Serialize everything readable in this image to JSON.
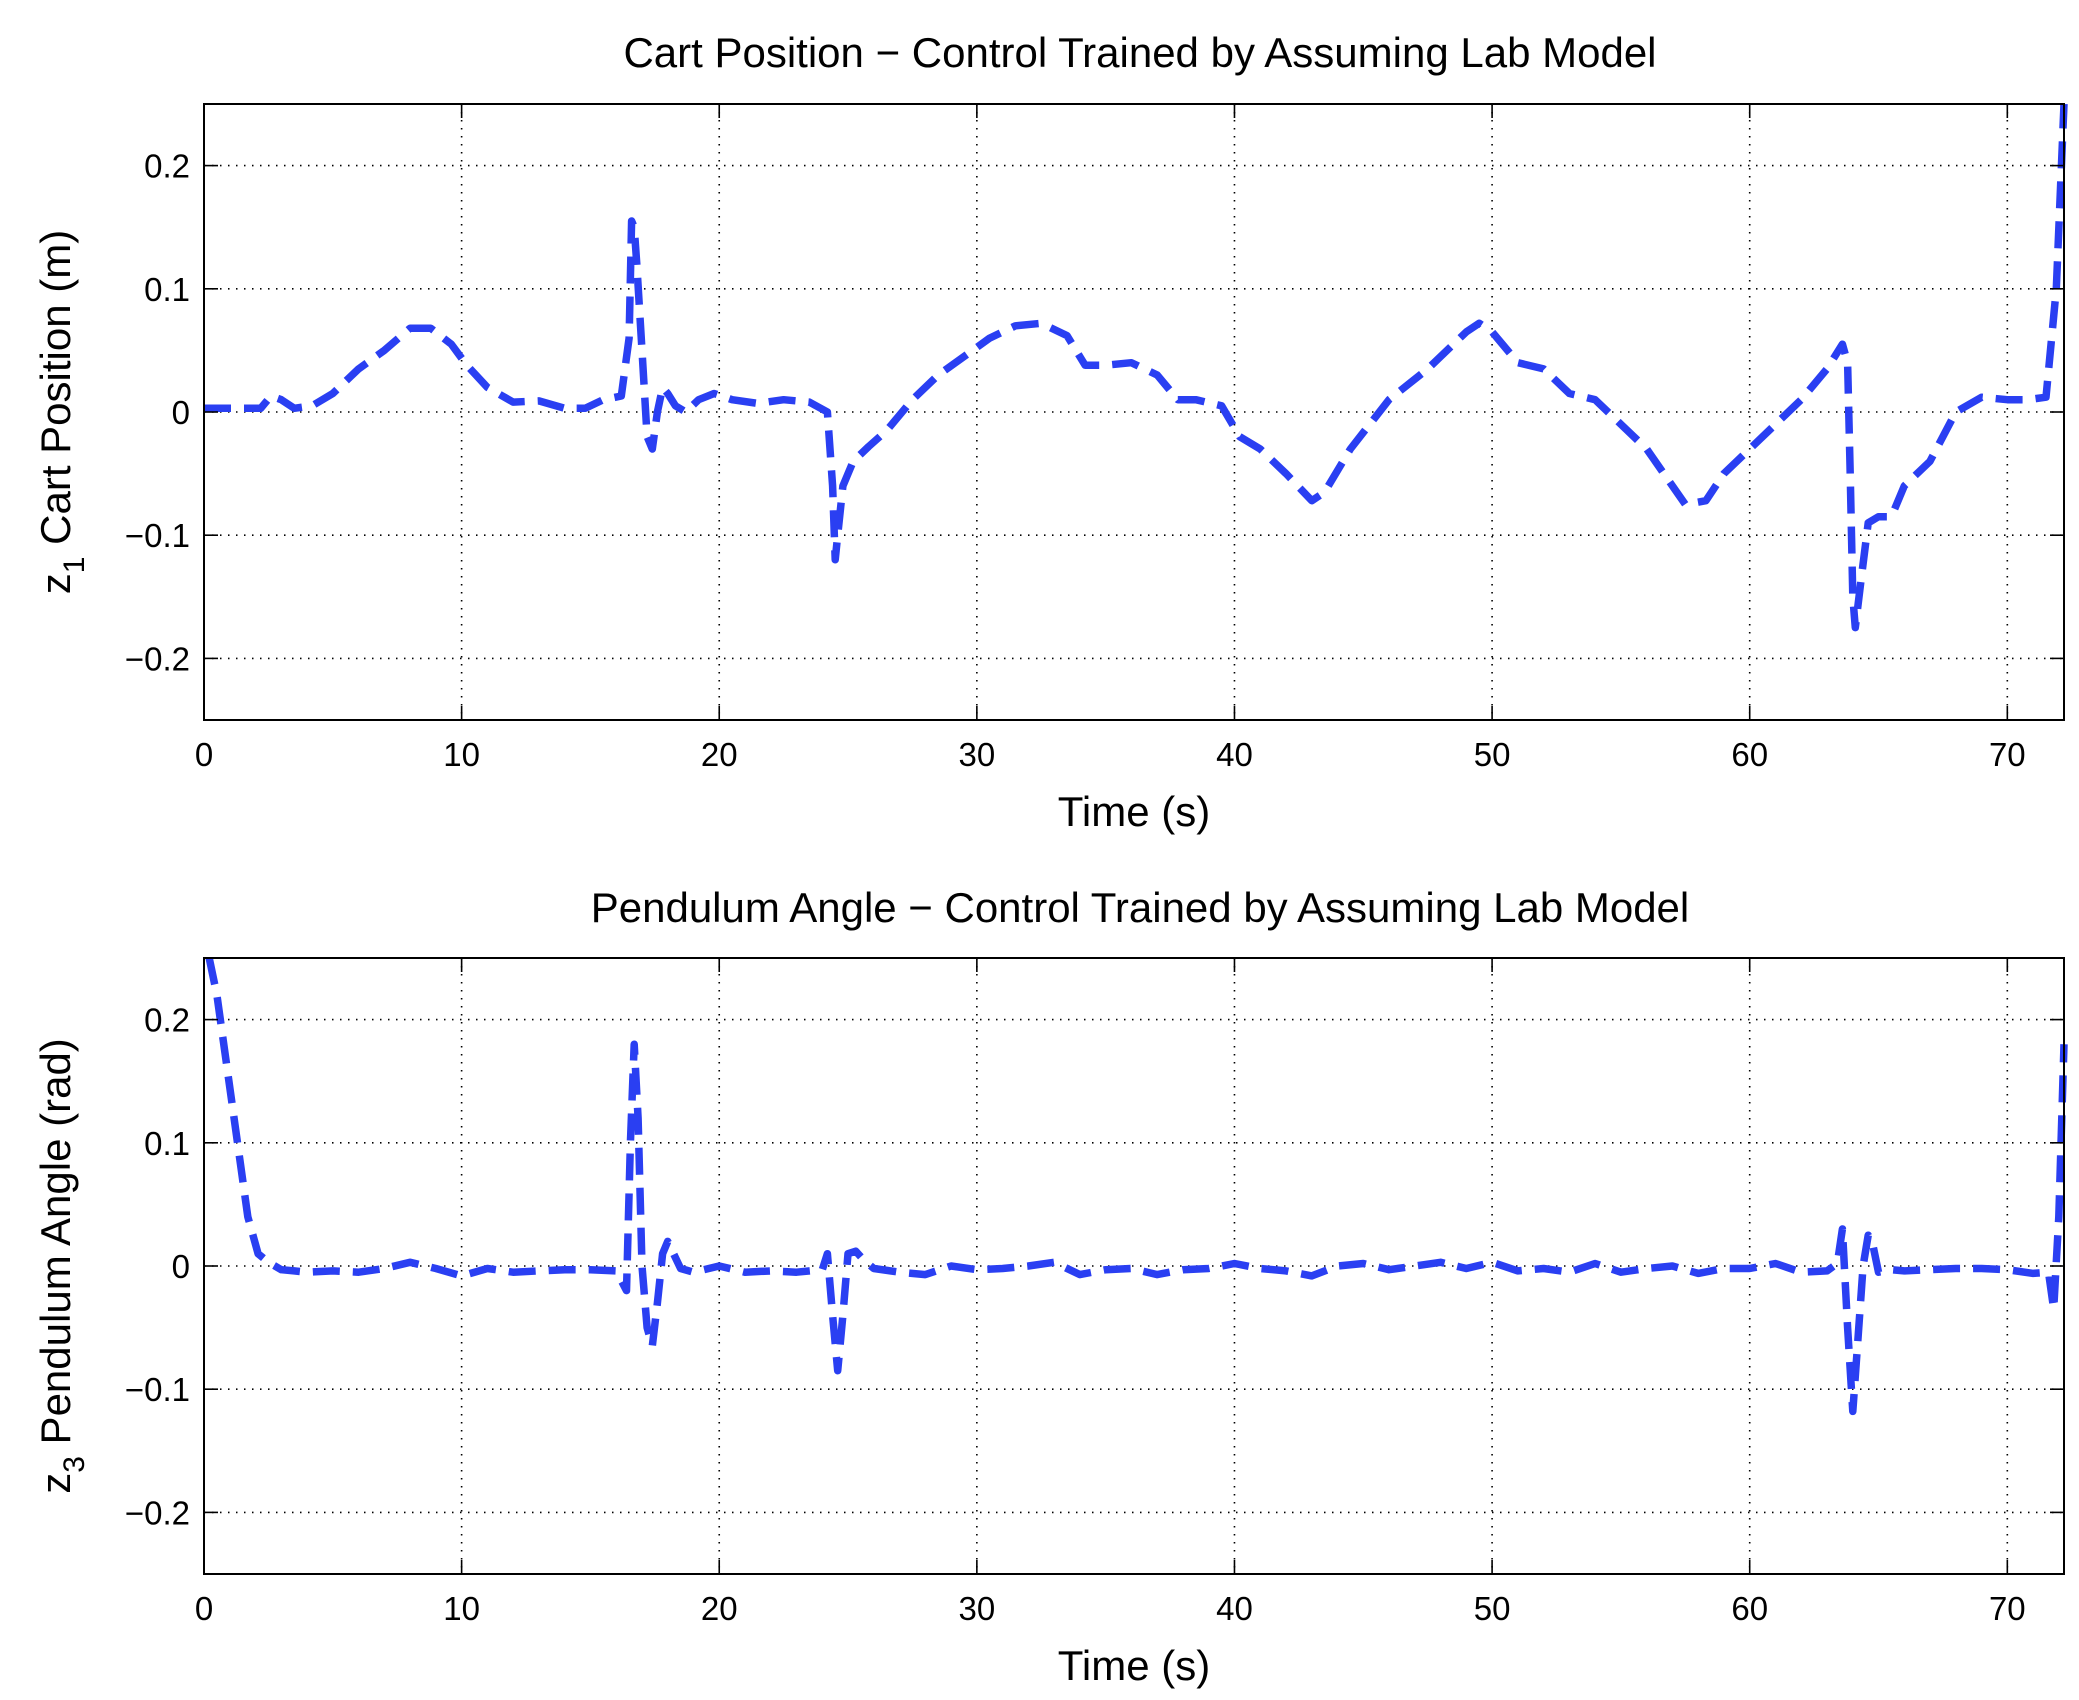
{
  "chart_data": [
    {
      "type": "line",
      "title": "Cart Position − Control Trained by Assuming Lab Model",
      "xlabel": "Time (s)",
      "ylabel": "z",
      "ylabel_subscript": "1",
      "ylabel_rest": " Cart Position (m)",
      "xlim": [
        0,
        72.2
      ],
      "ylim": [
        -0.25,
        0.25
      ],
      "xticks": [
        0,
        10,
        20,
        30,
        40,
        50,
        60,
        70
      ],
      "xtick_labels": [
        "0",
        "10",
        "20",
        "30",
        "40",
        "50",
        "60",
        "70"
      ],
      "yticks": [
        0.2,
        0.1,
        0,
        -0.1,
        -0.2
      ],
      "ytick_labels": [
        "0.2",
        "0.1",
        "0",
        "−0.1",
        "−0.2"
      ],
      "grid": true,
      "series": [
        {
          "name": "cart position",
          "color": "#2a3ff2",
          "style": "dashed",
          "x": [
            0,
            2.2,
            2.6,
            3.0,
            3.5,
            4.2,
            5.0,
            6.0,
            7.0,
            8.0,
            8.8,
            9.6,
            10.2,
            11.0,
            12.0,
            13.0,
            14.0,
            14.8,
            15.5,
            16.2,
            16.5,
            16.6,
            16.7,
            16.8,
            17.0,
            17.2,
            17.4,
            17.6,
            17.8,
            18.0,
            18.3,
            18.7,
            19.2,
            19.8,
            20.5,
            21.5,
            22.5,
            23.5,
            24.2,
            24.4,
            24.5,
            24.6,
            24.8,
            25.2,
            25.8,
            26.5,
            27.5,
            28.5,
            29.5,
            30.5,
            31.5,
            32.5,
            33.5,
            34.2,
            35.0,
            36.0,
            37.0,
            37.8,
            38.5,
            39.5,
            40.2,
            41.0,
            42.0,
            43.0,
            43.5,
            44.5,
            46.0,
            47.5,
            49.0,
            49.5,
            50.0,
            51.0,
            52.0,
            53.0,
            54.0,
            55.0,
            56.0,
            57.0,
            57.5,
            58.3,
            59.0,
            60.0,
            61.0,
            62.0,
            63.0,
            63.6,
            63.8,
            63.9,
            64.0,
            64.1,
            64.3,
            64.6,
            65.0,
            65.5,
            66.0,
            67.0,
            68.0,
            69.0,
            70.0,
            70.8,
            71.5,
            71.9,
            72.2
          ],
          "y": [
            0.003,
            0.003,
            0.013,
            0.01,
            0.003,
            0.005,
            0.015,
            0.035,
            0.05,
            0.068,
            0.068,
            0.055,
            0.038,
            0.02,
            0.008,
            0.009,
            0.003,
            0.003,
            0.01,
            0.013,
            0.06,
            0.155,
            0.15,
            0.12,
            0.05,
            -0.02,
            -0.03,
            0.0,
            0.02,
            0.015,
            0.005,
            0.0,
            0.01,
            0.015,
            0.01,
            0.007,
            0.01,
            0.008,
            0.0,
            -0.06,
            -0.12,
            -0.1,
            -0.06,
            -0.04,
            -0.028,
            -0.015,
            0.01,
            0.03,
            0.045,
            0.06,
            0.07,
            0.072,
            0.062,
            0.038,
            0.038,
            0.04,
            0.03,
            0.01,
            0.01,
            0.005,
            -0.02,
            -0.03,
            -0.05,
            -0.072,
            -0.065,
            -0.03,
            0.01,
            0.035,
            0.065,
            0.072,
            0.065,
            0.04,
            0.035,
            0.015,
            0.01,
            -0.01,
            -0.03,
            -0.06,
            -0.075,
            -0.072,
            -0.05,
            -0.03,
            -0.01,
            0.01,
            0.035,
            0.055,
            0.04,
            -0.05,
            -0.15,
            -0.175,
            -0.14,
            -0.09,
            -0.085,
            -0.085,
            -0.06,
            -0.04,
            0.0,
            0.012,
            0.01,
            0.01,
            0.012,
            0.1,
            0.25
          ]
        }
      ]
    },
    {
      "type": "line",
      "title": "Pendulum Angle − Control Trained by Assuming Lab Model",
      "xlabel": "Time (s)",
      "ylabel": "z",
      "ylabel_subscript": "3",
      "ylabel_rest": " Pendulum Angle (rad)",
      "xlim": [
        0,
        72.2
      ],
      "ylim": [
        -0.25,
        0.25
      ],
      "xticks": [
        0,
        10,
        20,
        30,
        40,
        50,
        60,
        70
      ],
      "xtick_labels": [
        "0",
        "10",
        "20",
        "30",
        "40",
        "50",
        "60",
        "70"
      ],
      "yticks": [
        0.2,
        0.1,
        0,
        -0.1,
        -0.2
      ],
      "ytick_labels": [
        "0.2",
        "0.1",
        "0",
        "−0.1",
        "−0.2"
      ],
      "grid": true,
      "series": [
        {
          "name": "pendulum angle",
          "color": "#2a3ff2",
          "style": "dashed",
          "x": [
            0.2,
            0.5,
            0.9,
            1.3,
            1.7,
            2.1,
            2.5,
            3.0,
            3.5,
            4.0,
            5.0,
            6.0,
            7.0,
            8.0,
            9.0,
            10.0,
            11.0,
            12.0,
            13.0,
            14.0,
            15.0,
            16.0,
            16.4,
            16.55,
            16.7,
            16.85,
            17.0,
            17.2,
            17.4,
            17.6,
            17.8,
            18.0,
            18.5,
            19.0,
            20.0,
            21.0,
            22.0,
            23.0,
            24.0,
            24.2,
            24.4,
            24.6,
            24.8,
            25.0,
            25.3,
            25.6,
            26.0,
            27.0,
            28.0,
            29.0,
            30.0,
            31.0,
            32.0,
            33.0,
            34.0,
            35.0,
            36.0,
            37.0,
            38.0,
            39.0,
            40.0,
            41.0,
            42.0,
            43.0,
            44.0,
            45.0,
            46.0,
            47.0,
            48.0,
            49.0,
            50.0,
            51.0,
            52.0,
            53.0,
            54.0,
            55.0,
            56.0,
            57.0,
            58.0,
            59.0,
            60.0,
            61.0,
            62.0,
            63.0,
            63.4,
            63.6,
            63.8,
            64.0,
            64.2,
            64.4,
            64.6,
            64.8,
            65.0,
            65.5,
            66.0,
            67.0,
            68.0,
            69.0,
            70.0,
            71.0,
            71.6,
            71.8,
            72.0,
            72.2
          ],
          "y": [
            0.25,
            0.22,
            0.16,
            0.1,
            0.04,
            0.01,
            0.003,
            -0.003,
            -0.004,
            -0.005,
            -0.004,
            -0.005,
            -0.002,
            0.003,
            -0.002,
            -0.008,
            -0.002,
            -0.005,
            -0.004,
            -0.003,
            -0.003,
            -0.004,
            -0.02,
            0.1,
            0.18,
            0.12,
            0.0,
            -0.05,
            -0.065,
            -0.03,
            0.01,
            0.02,
            -0.002,
            -0.005,
            0.0,
            -0.005,
            -0.004,
            -0.005,
            -0.003,
            0.01,
            -0.04,
            -0.085,
            -0.04,
            0.01,
            0.012,
            0.005,
            -0.002,
            -0.005,
            -0.007,
            0.0,
            -0.003,
            -0.002,
            0.0,
            0.003,
            -0.007,
            -0.003,
            -0.002,
            -0.007,
            -0.003,
            -0.002,
            0.002,
            -0.002,
            -0.004,
            -0.008,
            0.0,
            0.002,
            -0.003,
            0.0,
            0.003,
            -0.002,
            0.003,
            -0.004,
            -0.002,
            -0.005,
            0.002,
            -0.005,
            -0.002,
            0.0,
            -0.006,
            -0.002,
            -0.002,
            0.002,
            -0.005,
            -0.004,
            0.002,
            0.03,
            -0.05,
            -0.118,
            -0.06,
            0.0,
            0.025,
            0.015,
            -0.005,
            -0.003,
            -0.004,
            -0.003,
            -0.002,
            -0.002,
            -0.003,
            -0.006,
            -0.005,
            -0.035,
            0.04,
            0.18
          ]
        }
      ]
    }
  ]
}
